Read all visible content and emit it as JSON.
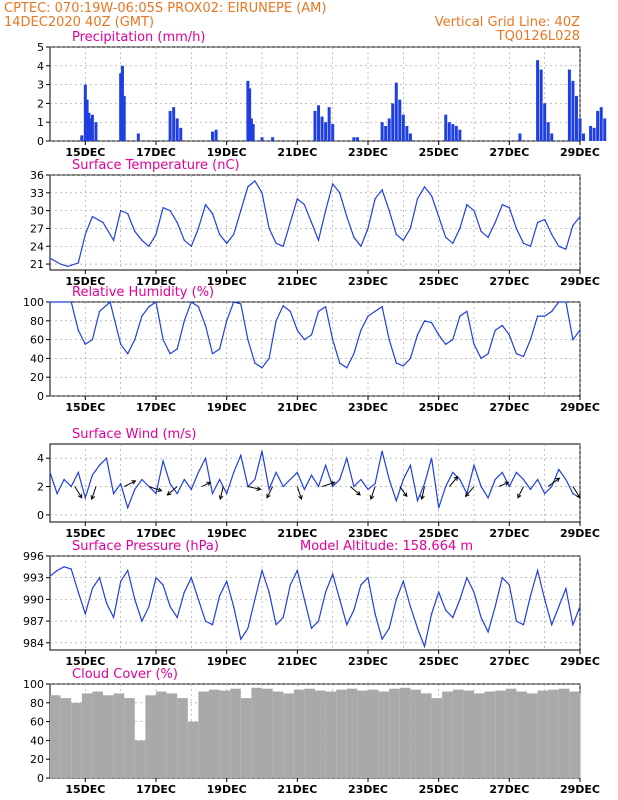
{
  "header": {
    "line1": "CPTEC:    070:19W-06:05S    PROX02: EIRUNEPE (AM)",
    "line2": "14DEC2020 40Z (GMT)",
    "right1": "Vertical Grid Line: 40Z",
    "right2": "TQ0126L028"
  },
  "colors": {
    "header": "#e87722",
    "panel_title": "#e0009a",
    "series": "#1f3fe0",
    "cloud": "#a9a9a9",
    "grid": "#999999",
    "wind_arrow": "#000000"
  },
  "x_tick_labels": [
    "15DEC",
    "17DEC",
    "19DEC",
    "21DEC",
    "23DEC",
    "25DEC",
    "27DEC",
    "29DEC"
  ],
  "chart_data": [
    {
      "type": "bar",
      "title": "Precipitation (mm/h)",
      "x": [
        14.9,
        15.0,
        15.05,
        15.1,
        15.15,
        15.2,
        15.3,
        16.0,
        16.05,
        16.1,
        16.5,
        17.4,
        17.5,
        17.6,
        17.7,
        18.6,
        18.7,
        19.6,
        19.65,
        19.7,
        19.75,
        20.0,
        20.3,
        21.5,
        21.6,
        21.7,
        21.8,
        21.9,
        22.0,
        22.6,
        22.7,
        23.4,
        23.5,
        23.6,
        23.7,
        23.8,
        23.9,
        24.0,
        24.1,
        24.2,
        25.2,
        25.3,
        25.4,
        25.5,
        25.6,
        27.3,
        27.8,
        27.9,
        28.0,
        28.1,
        28.2,
        28.7,
        28.8,
        28.9,
        29.0,
        29.1,
        29.3,
        29.4,
        29.5,
        29.6,
        29.7
      ],
      "values": [
        0.3,
        3.0,
        2.2,
        1.5,
        1.2,
        1.4,
        1.0,
        3.6,
        4.0,
        2.4,
        0.4,
        1.6,
        1.8,
        1.2,
        0.7,
        0.5,
        0.6,
        3.2,
        2.8,
        1.2,
        0.9,
        0.2,
        0.2,
        1.6,
        1.9,
        1.3,
        1.0,
        1.8,
        0.9,
        0.2,
        0.2,
        1.0,
        0.8,
        1.2,
        2.0,
        3.1,
        2.2,
        1.4,
        0.8,
        0.4,
        1.4,
        1.0,
        0.9,
        0.8,
        0.6,
        0.4,
        4.3,
        3.8,
        2.0,
        1.0,
        0.4,
        3.8,
        3.2,
        2.4,
        1.2,
        0.4,
        0.8,
        0.7,
        1.6,
        1.8,
        1.2
      ],
      "xlim": [
        14,
        29
      ],
      "ylim": [
        0,
        5
      ],
      "yticks": [
        0,
        1,
        2,
        3,
        4,
        5
      ]
    },
    {
      "type": "line",
      "title": "Surface Temperature (nC)",
      "x": [
        14.0,
        14.3,
        14.5,
        14.8,
        15.0,
        15.2,
        15.5,
        15.8,
        16.0,
        16.2,
        16.4,
        16.6,
        16.8,
        17.0,
        17.2,
        17.4,
        17.6,
        17.8,
        18.0,
        18.2,
        18.4,
        18.6,
        18.8,
        19.0,
        19.2,
        19.4,
        19.6,
        19.8,
        20.0,
        20.2,
        20.4,
        20.6,
        20.8,
        21.0,
        21.2,
        21.4,
        21.6,
        21.8,
        22.0,
        22.2,
        22.4,
        22.6,
        22.8,
        23.0,
        23.2,
        23.4,
        23.6,
        23.8,
        24.0,
        24.2,
        24.4,
        24.6,
        24.8,
        25.0,
        25.2,
        25.4,
        25.6,
        25.8,
        26.0,
        26.2,
        26.4,
        26.6,
        26.8,
        27.0,
        27.2,
        27.4,
        27.6,
        27.8,
        28.0,
        28.2,
        28.4,
        28.6,
        28.8,
        29.0
      ],
      "values": [
        22.0,
        21.0,
        20.6,
        21.2,
        26.0,
        29.0,
        28.0,
        25.0,
        30.0,
        29.5,
        26.5,
        25.0,
        24.0,
        26.0,
        30.5,
        30.0,
        28.0,
        25.0,
        24.0,
        27.0,
        31.0,
        29.5,
        26.0,
        24.5,
        26.0,
        30.0,
        34.0,
        35.0,
        33.0,
        27.0,
        24.5,
        24.0,
        28.0,
        32.0,
        31.0,
        28.0,
        25.0,
        30.0,
        34.5,
        33.0,
        29.0,
        25.5,
        24.0,
        27.0,
        32.0,
        33.5,
        30.0,
        26.0,
        25.0,
        27.0,
        32.0,
        34.0,
        32.5,
        29.0,
        25.5,
        24.5,
        27.0,
        31.0,
        30.0,
        26.5,
        25.5,
        28.0,
        31.0,
        30.5,
        27.0,
        24.5,
        24.0,
        28.0,
        28.5,
        26.0,
        24.0,
        23.5,
        27.5,
        29.0
      ],
      "xlim": [
        14,
        29
      ],
      "ylim": [
        20,
        36
      ],
      "yticks": [
        21,
        24,
        27,
        30,
        33,
        36
      ]
    },
    {
      "type": "line",
      "title": "Relative Humidity (%)",
      "x": [
        14.0,
        14.3,
        14.6,
        14.8,
        15.0,
        15.2,
        15.4,
        15.7,
        16.0,
        16.2,
        16.4,
        16.6,
        16.8,
        17.0,
        17.2,
        17.4,
        17.6,
        17.8,
        18.0,
        18.2,
        18.4,
        18.6,
        18.8,
        19.0,
        19.2,
        19.4,
        19.6,
        19.8,
        20.0,
        20.2,
        20.4,
        20.6,
        20.8,
        21.0,
        21.2,
        21.4,
        21.6,
        21.8,
        22.0,
        22.2,
        22.4,
        22.6,
        22.8,
        23.0,
        23.2,
        23.4,
        23.6,
        23.8,
        24.0,
        24.2,
        24.4,
        24.6,
        24.8,
        25.0,
        25.2,
        25.4,
        25.6,
        25.8,
        26.0,
        26.2,
        26.4,
        26.6,
        26.8,
        27.0,
        27.2,
        27.4,
        27.6,
        27.8,
        28.0,
        28.2,
        28.4,
        28.6,
        28.8,
        29.0
      ],
      "values": [
        100,
        100,
        100,
        70,
        55,
        60,
        90,
        100,
        55,
        45,
        60,
        85,
        95,
        100,
        60,
        45,
        50,
        80,
        100,
        95,
        75,
        45,
        50,
        80,
        100,
        98,
        60,
        35,
        30,
        40,
        80,
        96,
        90,
        70,
        60,
        65,
        90,
        95,
        60,
        35,
        30,
        45,
        70,
        85,
        90,
        95,
        60,
        35,
        32,
        40,
        65,
        80,
        78,
        65,
        55,
        60,
        85,
        90,
        55,
        40,
        45,
        70,
        75,
        65,
        45,
        42,
        60,
        85,
        85,
        90,
        100,
        100,
        60,
        70
      ],
      "xlim": [
        14,
        29
      ],
      "ylim": [
        0,
        100
      ],
      "yticks": [
        0,
        20,
        40,
        60,
        80,
        100
      ]
    },
    {
      "type": "line",
      "title": "Surface Wind (m/s)",
      "x": [
        14.0,
        14.2,
        14.4,
        14.6,
        14.8,
        15.0,
        15.2,
        15.4,
        15.6,
        15.8,
        16.0,
        16.2,
        16.4,
        16.6,
        16.8,
        17.0,
        17.2,
        17.4,
        17.6,
        17.8,
        18.0,
        18.2,
        18.4,
        18.6,
        18.8,
        19.0,
        19.2,
        19.4,
        19.6,
        19.8,
        20.0,
        20.2,
        20.4,
        20.6,
        20.8,
        21.0,
        21.2,
        21.4,
        21.6,
        21.8,
        22.0,
        22.2,
        22.4,
        22.6,
        22.8,
        23.0,
        23.2,
        23.4,
        23.6,
        23.8,
        24.0,
        24.2,
        24.4,
        24.6,
        24.8,
        25.0,
        25.2,
        25.4,
        25.6,
        25.8,
        26.0,
        26.2,
        26.4,
        26.6,
        26.8,
        27.0,
        27.2,
        27.4,
        27.6,
        27.8,
        28.0,
        28.2,
        28.4,
        28.6,
        28.8,
        29.0
      ],
      "values": [
        3.0,
        1.5,
        2.5,
        2.0,
        3.0,
        1.2,
        2.8,
        3.5,
        4.0,
        1.5,
        2.2,
        0.5,
        1.8,
        2.5,
        2.0,
        1.5,
        3.8,
        2.2,
        1.5,
        2.5,
        1.8,
        3.0,
        4.0,
        1.5,
        2.5,
        1.5,
        3.0,
        4.2,
        2.0,
        2.5,
        4.5,
        1.8,
        3.0,
        2.0,
        2.5,
        3.0,
        1.8,
        2.8,
        2.0,
        3.5,
        2.0,
        2.5,
        4.0,
        2.0,
        2.5,
        1.8,
        2.2,
        4.5,
        2.5,
        1.0,
        2.5,
        3.5,
        1.0,
        2.2,
        4.0,
        0.5,
        2.0,
        3.0,
        2.5,
        1.5,
        3.5,
        2.0,
        1.2,
        2.5,
        3.0,
        2.0,
        3.0,
        2.5,
        1.8,
        2.5,
        1.5,
        2.0,
        3.2,
        2.5,
        1.5,
        1.2
      ],
      "xlim": [
        14,
        29
      ],
      "ylim": [
        -0.5,
        5
      ],
      "yticks": [
        0,
        2,
        4
      ]
    },
    {
      "type": "line",
      "title": "Surface Pressure (hPa)",
      "annotation": "Model Altitude: 158.664 m",
      "x": [
        14.0,
        14.2,
        14.4,
        14.6,
        14.8,
        15.0,
        15.2,
        15.4,
        15.6,
        15.8,
        16.0,
        16.2,
        16.4,
        16.6,
        16.8,
        17.0,
        17.2,
        17.4,
        17.6,
        17.8,
        18.0,
        18.2,
        18.4,
        18.6,
        18.8,
        19.0,
        19.2,
        19.4,
        19.6,
        19.8,
        20.0,
        20.2,
        20.4,
        20.6,
        20.8,
        21.0,
        21.2,
        21.4,
        21.6,
        21.8,
        22.0,
        22.2,
        22.4,
        22.6,
        22.8,
        23.0,
        23.2,
        23.4,
        23.6,
        23.8,
        24.0,
        24.2,
        24.4,
        24.6,
        24.8,
        25.0,
        25.2,
        25.4,
        25.6,
        25.8,
        26.0,
        26.2,
        26.4,
        26.6,
        26.8,
        27.0,
        27.2,
        27.4,
        27.6,
        27.8,
        28.0,
        28.2,
        28.4,
        28.6,
        28.8,
        29.0
      ],
      "values": [
        993.2,
        994.0,
        994.5,
        994.2,
        991.0,
        988.0,
        991.5,
        993.0,
        989.5,
        987.5,
        992.5,
        994.0,
        990.0,
        987.0,
        989.0,
        993.0,
        992.0,
        989.0,
        987.5,
        991.0,
        993.0,
        990.0,
        987.0,
        986.5,
        990.5,
        992.5,
        989.0,
        984.5,
        986.0,
        990.0,
        994.0,
        991.0,
        986.5,
        987.5,
        992.0,
        994.0,
        990.0,
        986.0,
        987.0,
        991.0,
        993.5,
        990.0,
        986.5,
        988.5,
        992.0,
        993.0,
        988.0,
        984.5,
        986.0,
        990.0,
        992.5,
        989.0,
        986.0,
        983.5,
        988.0,
        991.0,
        988.5,
        987.5,
        990.0,
        993.0,
        991.0,
        987.5,
        985.5,
        989.0,
        993.0,
        992.0,
        987.0,
        986.5,
        990.5,
        994.0,
        990.0,
        986.5,
        989.0,
        991.5,
        986.5,
        989.0
      ],
      "xlim": [
        14,
        29
      ],
      "ylim": [
        983,
        996
      ],
      "yticks": [
        984,
        987,
        990,
        993,
        996
      ]
    },
    {
      "type": "area",
      "title": "Cloud Cover (%)",
      "x": [
        14.0,
        14.3,
        14.6,
        14.9,
        15.2,
        15.5,
        15.8,
        16.1,
        16.4,
        16.7,
        17.0,
        17.3,
        17.6,
        17.9,
        18.2,
        18.5,
        18.8,
        19.1,
        19.4,
        19.7,
        20.0,
        20.3,
        20.6,
        20.9,
        21.2,
        21.5,
        21.8,
        22.1,
        22.4,
        22.7,
        23.0,
        23.3,
        23.6,
        23.9,
        24.2,
        24.5,
        24.8,
        25.1,
        25.4,
        25.7,
        26.0,
        26.3,
        26.6,
        26.9,
        27.2,
        27.5,
        27.8,
        28.1,
        28.4,
        28.7,
        29.0
      ],
      "values": [
        88,
        85,
        80,
        90,
        92,
        88,
        90,
        85,
        40,
        88,
        92,
        90,
        85,
        60,
        92,
        94,
        93,
        95,
        85,
        96,
        95,
        92,
        90,
        94,
        95,
        93,
        92,
        94,
        95,
        93,
        94,
        92,
        95,
        96,
        94,
        90,
        85,
        92,
        94,
        93,
        90,
        92,
        93,
        95,
        92,
        90,
        93,
        94,
        95,
        92,
        90
      ],
      "xlim": [
        14,
        29
      ],
      "ylim": [
        0,
        100
      ],
      "yticks": [
        0,
        20,
        40,
        60,
        80,
        100
      ]
    }
  ],
  "wind_arrows": {
    "x": [
      14.7,
      15.3,
      16.1,
      16.8,
      17.6,
      18.3,
      18.9,
      19.6,
      20.3,
      21.0,
      21.7,
      22.5,
      23.2,
      23.9,
      24.6,
      25.3,
      26.0,
      26.7,
      27.4,
      28.1,
      28.8
    ],
    "u": [
      0.5,
      -0.3,
      0.8,
      0.9,
      -0.7,
      0.6,
      -0.2,
      0.9,
      -0.4,
      0.3,
      0.9,
      0.7,
      -0.3,
      0.5,
      -0.2,
      0.6,
      -0.6,
      0.7,
      -0.4,
      0.8,
      0.5
    ],
    "v": [
      -0.8,
      -0.9,
      0.4,
      -0.3,
      -0.6,
      0.3,
      -0.9,
      -0.2,
      -0.8,
      -0.9,
      0.3,
      -0.6,
      -0.9,
      -0.7,
      -0.9,
      0.7,
      -0.7,
      0.3,
      -0.8,
      0.6,
      -0.8
    ]
  }
}
